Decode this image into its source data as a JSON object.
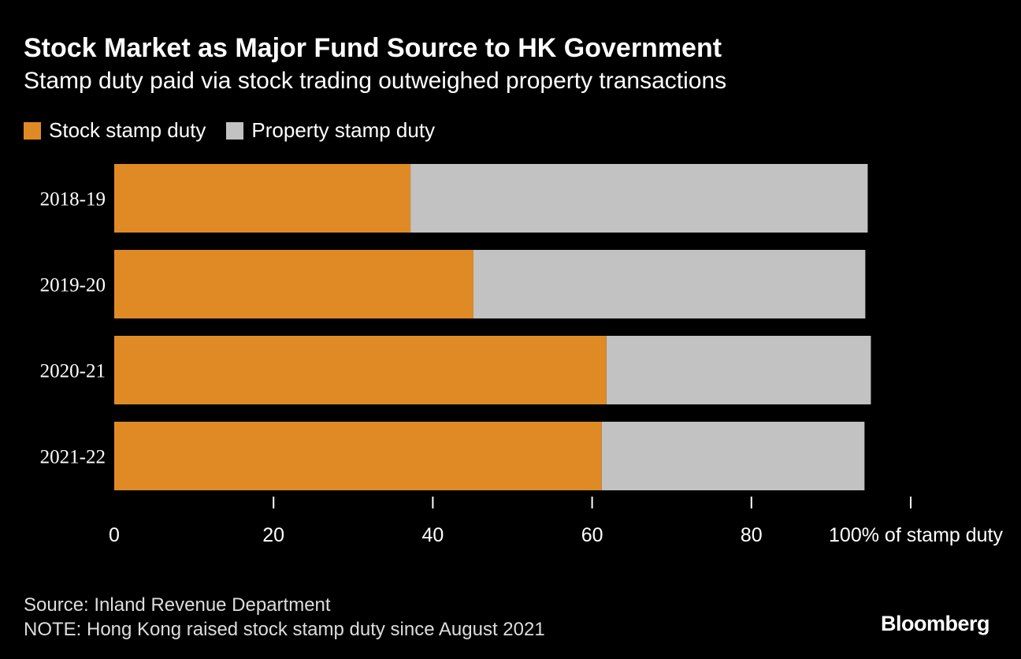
{
  "title": "Stock Market as Major Fund Source to HK Government",
  "subtitle": "Stamp duty paid via stock trading outweighed property transactions",
  "source": "Source: Inland Revenue Department",
  "note": "NOTE: Hong Kong raised stock stamp duty since August 2021",
  "logo": "Bloomberg",
  "chart_data": {
    "type": "bar",
    "orientation": "horizontal",
    "stacked": true,
    "categories": [
      "2018-19",
      "2019-20",
      "2020-21",
      "2021-22"
    ],
    "series": [
      {
        "name": "Stock stamp duty",
        "color": "#e08a26",
        "values": [
          37.2,
          45.1,
          61.8,
          61.2
        ]
      },
      {
        "name": "Property stamp duty",
        "color": "#c2c2c2",
        "values": [
          57.4,
          49.2,
          33.2,
          33.0
        ]
      }
    ],
    "xlabel": "% of stamp duty",
    "xlim": [
      0,
      100
    ],
    "xticks": [
      0,
      20,
      40,
      60,
      80,
      100
    ],
    "xtick_labels": [
      "0",
      "20",
      "40",
      "60",
      "80",
      "100% of stamp duty"
    ],
    "grid": false,
    "legend": "top-left"
  }
}
